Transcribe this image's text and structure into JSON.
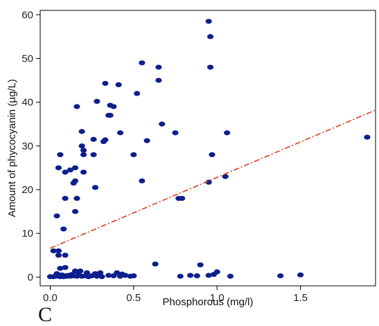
{
  "chart_data": {
    "type": "scatter",
    "xlabel": "Phosphorous (mg/l)",
    "ylabel": "Amount of phycocyanin (µg/L)",
    "xlim": [
      -0.06,
      1.95
    ],
    "ylim": [
      -2,
      61
    ],
    "x_ticks": [
      0.0,
      0.5,
      1.0,
      1.5
    ],
    "x_tick_labels": [
      "0.0",
      "0.5",
      "1.0",
      "1.5"
    ],
    "y_ticks": [
      0,
      10,
      20,
      30,
      40,
      50,
      60
    ],
    "y_tick_labels": [
      "0",
      "10",
      "20",
      "30",
      "40",
      "50",
      "60"
    ],
    "grid": false,
    "points": [
      [
        0.02,
        6
      ],
      [
        0.05,
        6
      ],
      [
        0.05,
        5
      ],
      [
        0.09,
        5
      ],
      [
        0.05,
        25
      ],
      [
        0.06,
        28
      ],
      [
        0.09,
        24
      ],
      [
        0.08,
        11
      ],
      [
        0.09,
        18
      ],
      [
        0.04,
        14
      ],
      [
        0.12,
        24.5
      ],
      [
        0.14,
        21.5
      ],
      [
        0.15,
        22
      ],
      [
        0.15,
        25
      ],
      [
        0.16,
        18
      ],
      [
        0.15,
        15
      ],
      [
        0.16,
        39
      ],
      [
        0.19,
        33.3
      ],
      [
        0.19,
        30
      ],
      [
        0.2,
        29
      ],
      [
        0.2,
        28
      ],
      [
        0.2,
        24
      ],
      [
        0.26,
        28
      ],
      [
        0.26,
        31.5
      ],
      [
        0.27,
        20.5
      ],
      [
        0.28,
        40.2
      ],
      [
        0.32,
        31
      ],
      [
        0.33,
        31.4
      ],
      [
        0.33,
        44.3
      ],
      [
        0.35,
        37
      ],
      [
        0.36,
        37
      ],
      [
        0.36,
        39.3
      ],
      [
        0.38,
        39
      ],
      [
        0.41,
        44
      ],
      [
        0.42,
        33
      ],
      [
        0.5,
        28
      ],
      [
        0.52,
        42
      ],
      [
        0.55,
        49
      ],
      [
        0.55,
        22
      ],
      [
        0.58,
        31.2
      ],
      [
        0.65,
        45
      ],
      [
        0.65,
        48
      ],
      [
        0.67,
        35
      ],
      [
        0.75,
        33
      ],
      [
        0.77,
        18
      ],
      [
        0.79,
        18
      ],
      [
        0.95,
        58.5
      ],
      [
        0.96,
        55
      ],
      [
        0.96,
        48
      ],
      [
        0.97,
        28
      ],
      [
        0.95,
        21.7
      ],
      [
        1.05,
        23
      ],
      [
        1.06,
        33
      ],
      [
        1.9,
        32
      ],
      [
        0.63,
        3
      ],
      [
        0.9,
        2.8
      ],
      [
        0.84,
        0.4
      ],
      [
        0.06,
        2
      ],
      [
        0.09,
        2.2
      ],
      [
        0.04,
        0.8
      ],
      [
        0.15,
        1.4
      ],
      [
        0.18,
        1.4
      ],
      [
        0.22,
        1
      ],
      [
        0.27,
        0.8
      ],
      [
        0.3,
        1
      ],
      [
        0.4,
        1
      ],
      [
        0.43,
        0.7
      ],
      [
        1.0,
        1.2
      ],
      [
        1.38,
        0.3
      ],
      [
        1.5,
        0.5
      ],
      [
        0.0,
        0.1
      ],
      [
        0.02,
        0.1
      ],
      [
        0.03,
        0.2
      ],
      [
        0.05,
        0.2
      ],
      [
        0.06,
        0.1
      ],
      [
        0.07,
        0.5
      ],
      [
        0.08,
        0.1
      ],
      [
        0.09,
        0.3
      ],
      [
        0.1,
        0.2
      ],
      [
        0.11,
        0.4
      ],
      [
        0.12,
        0.2
      ],
      [
        0.13,
        0.6
      ],
      [
        0.14,
        0.3
      ],
      [
        0.16,
        0.2
      ],
      [
        0.17,
        0.5
      ],
      [
        0.19,
        0.2
      ],
      [
        0.21,
        0.3
      ],
      [
        0.23,
        0.1
      ],
      [
        0.25,
        0.3
      ],
      [
        0.28,
        0.2
      ],
      [
        0.31,
        0.1
      ],
      [
        0.35,
        0.4
      ],
      [
        0.38,
        0.3
      ],
      [
        0.42,
        0.2
      ],
      [
        0.45,
        0.4
      ],
      [
        0.48,
        0.2
      ],
      [
        0.5,
        0.3
      ],
      [
        0.78,
        0.2
      ],
      [
        0.88,
        0.3
      ],
      [
        0.95,
        0.4
      ],
      [
        0.98,
        0.6
      ],
      [
        1.08,
        0.2
      ]
    ],
    "point_color": "#0c1f8c",
    "trend_line": {
      "x": [
        0.0,
        1.95
      ],
      "y": [
        6.6,
        38.2
      ],
      "color": "#e0391c",
      "style": "dash-dot"
    }
  },
  "panel_letter": "C"
}
